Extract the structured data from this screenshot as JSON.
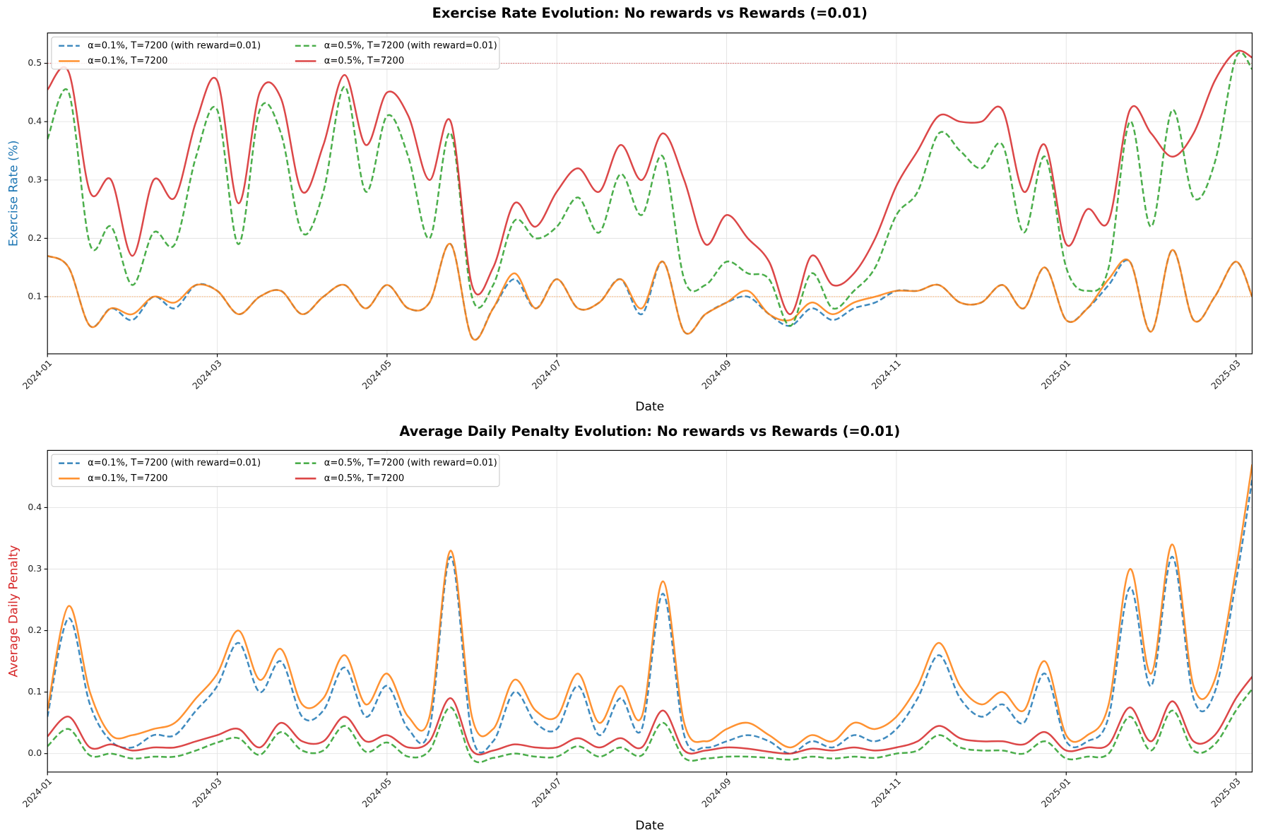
{
  "chart_data": [
    {
      "type": "line",
      "title": "Exercise Rate Evolution: No rewards vs Rewards (=0.01)",
      "xlabel": "Date",
      "ylabel": "Exercise Rate (%)",
      "axis_color": "#1f77b4",
      "x": [
        0,
        0.25,
        0.5,
        0.75,
        1,
        1.25,
        1.5,
        1.75,
        2,
        2.25,
        2.5,
        2.75,
        3,
        3.25,
        3.5,
        3.75,
        4,
        4.25,
        4.5,
        4.75,
        5,
        5.25,
        5.5,
        5.75,
        6,
        6.25,
        6.5,
        6.75,
        7,
        7.25,
        7.5,
        7.75,
        8,
        8.25,
        8.5,
        8.75,
        9,
        9.25,
        9.5,
        9.75,
        10,
        10.25,
        10.5,
        10.75,
        11,
        11.25,
        11.5,
        11.75,
        12,
        12.25,
        12.5,
        12.75,
        13,
        13.25,
        13.5,
        13.75,
        14,
        14.19
      ],
      "xlim": [
        0,
        14.19
      ],
      "xticks": [
        {
          "value": 0,
          "label": "2024-01"
        },
        {
          "value": 2,
          "label": "2024-03"
        },
        {
          "value": 4,
          "label": "2024-05"
        },
        {
          "value": 6,
          "label": "2024-07"
        },
        {
          "value": 8,
          "label": "2024-09"
        },
        {
          "value": 10,
          "label": "2024-11"
        },
        {
          "value": 12,
          "label": "2025-01"
        },
        {
          "value": 14,
          "label": "2025-03"
        }
      ],
      "ylim": [
        0.002,
        0.552
      ],
      "yticks": [
        0.1,
        0.2,
        0.3,
        0.4,
        0.5
      ],
      "grid": true,
      "legend": "upper-left",
      "hlines": [
        {
          "value": 0.5,
          "color": "#d62728"
        },
        {
          "value": 0.1,
          "color": "#ff7f0e"
        }
      ],
      "series": [
        {
          "name": "α=0.1%, T=7200 (with reward=0.01)",
          "color": "#1f77b4",
          "style": "dashed",
          "values": [
            0.17,
            0.15,
            0.05,
            0.08,
            0.06,
            0.1,
            0.08,
            0.12,
            0.11,
            0.07,
            0.1,
            0.11,
            0.07,
            0.1,
            0.12,
            0.08,
            0.12,
            0.08,
            0.09,
            0.19,
            0.03,
            0.08,
            0.13,
            0.08,
            0.13,
            0.08,
            0.09,
            0.13,
            0.07,
            0.16,
            0.04,
            0.07,
            0.09,
            0.1,
            0.07,
            0.05,
            0.08,
            0.06,
            0.08,
            0.09,
            0.11,
            0.11,
            0.12,
            0.09,
            0.09,
            0.12,
            0.08,
            0.15,
            0.06,
            0.08,
            0.12,
            0.16,
            0.04,
            0.18,
            0.06,
            0.1,
            0.16,
            0.1
          ]
        },
        {
          "name": "α=0.1%, T=7200",
          "color": "#ff7f0e",
          "style": "solid",
          "values": [
            0.17,
            0.15,
            0.05,
            0.08,
            0.07,
            0.1,
            0.09,
            0.12,
            0.11,
            0.07,
            0.1,
            0.11,
            0.07,
            0.1,
            0.12,
            0.08,
            0.12,
            0.08,
            0.09,
            0.19,
            0.03,
            0.08,
            0.14,
            0.08,
            0.13,
            0.08,
            0.09,
            0.13,
            0.08,
            0.16,
            0.04,
            0.07,
            0.09,
            0.11,
            0.07,
            0.06,
            0.09,
            0.07,
            0.09,
            0.1,
            0.11,
            0.11,
            0.12,
            0.09,
            0.09,
            0.12,
            0.08,
            0.15,
            0.06,
            0.08,
            0.13,
            0.16,
            0.04,
            0.18,
            0.06,
            0.1,
            0.16,
            0.1
          ]
        },
        {
          "name": "α=0.5%, T=7200 (with reward=0.01)",
          "color": "#2ca02c",
          "style": "dashed",
          "values": [
            0.37,
            0.45,
            0.19,
            0.22,
            0.12,
            0.21,
            0.19,
            0.34,
            0.42,
            0.19,
            0.42,
            0.38,
            0.21,
            0.28,
            0.46,
            0.28,
            0.41,
            0.34,
            0.2,
            0.38,
            0.1,
            0.12,
            0.23,
            0.2,
            0.22,
            0.27,
            0.21,
            0.31,
            0.24,
            0.34,
            0.13,
            0.12,
            0.16,
            0.14,
            0.13,
            0.05,
            0.14,
            0.08,
            0.11,
            0.15,
            0.24,
            0.28,
            0.38,
            0.35,
            0.32,
            0.36,
            0.21,
            0.34,
            0.15,
            0.11,
            0.15,
            0.4,
            0.22,
            0.42,
            0.27,
            0.33,
            0.51,
            0.49
          ]
        },
        {
          "name": "α=0.5%, T=7200",
          "color": "#d62728",
          "style": "solid",
          "values": [
            0.455,
            0.485,
            0.28,
            0.3,
            0.17,
            0.3,
            0.27,
            0.4,
            0.47,
            0.26,
            0.45,
            0.44,
            0.28,
            0.36,
            0.48,
            0.36,
            0.45,
            0.41,
            0.3,
            0.4,
            0.12,
            0.15,
            0.26,
            0.22,
            0.28,
            0.32,
            0.28,
            0.36,
            0.3,
            0.38,
            0.3,
            0.19,
            0.24,
            0.2,
            0.16,
            0.07,
            0.17,
            0.12,
            0.14,
            0.2,
            0.29,
            0.35,
            0.41,
            0.4,
            0.4,
            0.42,
            0.28,
            0.36,
            0.19,
            0.25,
            0.23,
            0.42,
            0.38,
            0.34,
            0.38,
            0.47,
            0.52,
            0.51
          ]
        }
      ]
    },
    {
      "type": "line",
      "title": "Average Daily Penalty Evolution: No rewards vs Rewards (=0.01)",
      "xlabel": "Date",
      "ylabel": "Average Daily Penalty",
      "axis_color": "#d62728",
      "x": [
        0,
        0.25,
        0.5,
        0.75,
        1,
        1.25,
        1.5,
        1.75,
        2,
        2.25,
        2.5,
        2.75,
        3,
        3.25,
        3.5,
        3.75,
        4,
        4.25,
        4.5,
        4.75,
        5,
        5.25,
        5.5,
        5.75,
        6,
        6.25,
        6.5,
        6.75,
        7,
        7.25,
        7.5,
        7.75,
        8,
        8.25,
        8.5,
        8.75,
        9,
        9.25,
        9.5,
        9.75,
        10,
        10.25,
        10.5,
        10.75,
        11,
        11.25,
        11.5,
        11.75,
        12,
        12.25,
        12.5,
        12.75,
        13,
        13.25,
        13.5,
        13.75,
        14,
        14.19
      ],
      "xlim": [
        0,
        14.19
      ],
      "xticks": [
        {
          "value": 0,
          "label": "2024-01"
        },
        {
          "value": 2,
          "label": "2024-03"
        },
        {
          "value": 4,
          "label": "2024-05"
        },
        {
          "value": 6,
          "label": "2024-07"
        },
        {
          "value": 8,
          "label": "2024-09"
        },
        {
          "value": 10,
          "label": "2024-11"
        },
        {
          "value": 12,
          "label": "2025-01"
        },
        {
          "value": 14,
          "label": "2025-03"
        }
      ],
      "ylim": [
        -0.03,
        0.493
      ],
      "yticks": [
        {
          "value": 0,
          "label": "0.0"
        },
        0.1,
        0.2,
        0.3,
        0.4
      ],
      "grid": true,
      "legend": "upper-left",
      "series": [
        {
          "name": "α=0.1%, T=7200 (with reward=0.01)",
          "color": "#1f77b4",
          "style": "dashed",
          "values": [
            0.06,
            0.22,
            0.08,
            0.02,
            0.01,
            0.03,
            0.03,
            0.07,
            0.11,
            0.18,
            0.1,
            0.15,
            0.06,
            0.07,
            0.14,
            0.06,
            0.11,
            0.04,
            0.04,
            0.32,
            0.03,
            0.02,
            0.1,
            0.05,
            0.04,
            0.11,
            0.03,
            0.09,
            0.04,
            0.26,
            0.03,
            0.01,
            0.02,
            0.03,
            0.02,
            0,
            0.02,
            0.01,
            0.03,
            0.02,
            0.04,
            0.09,
            0.16,
            0.09,
            0.06,
            0.08,
            0.05,
            0.13,
            0.02,
            0.02,
            0.06,
            0.27,
            0.11,
            0.32,
            0.09,
            0.1,
            0.28,
            0.445
          ]
        },
        {
          "name": "α=0.1%, T=7200",
          "color": "#ff7f0e",
          "style": "solid",
          "values": [
            0.07,
            0.24,
            0.1,
            0.03,
            0.03,
            0.04,
            0.05,
            0.09,
            0.13,
            0.2,
            0.12,
            0.17,
            0.08,
            0.09,
            0.16,
            0.08,
            0.13,
            0.06,
            0.06,
            0.33,
            0.06,
            0.04,
            0.12,
            0.07,
            0.06,
            0.13,
            0.05,
            0.11,
            0.06,
            0.28,
            0.05,
            0.02,
            0.04,
            0.05,
            0.03,
            0.01,
            0.03,
            0.02,
            0.05,
            0.04,
            0.06,
            0.11,
            0.18,
            0.11,
            0.08,
            0.1,
            0.07,
            0.15,
            0.03,
            0.03,
            0.08,
            0.3,
            0.13,
            0.34,
            0.11,
            0.12,
            0.3,
            0.47
          ]
        },
        {
          "name": "α=0.5%, T=7200 (with reward=0.01)",
          "color": "#2ca02c",
          "style": "dashed",
          "values": [
            0.012,
            0.04,
            -0.003,
            0,
            -0.008,
            -0.005,
            -0.005,
            0.005,
            0.018,
            0.025,
            -0.002,
            0.035,
            0.005,
            0.005,
            0.045,
            0.003,
            0.018,
            -0.005,
            0.005,
            0.075,
            -0.008,
            -0.007,
            0,
            -0.005,
            -0.005,
            0.012,
            -0.005,
            0.01,
            -0.003,
            0.05,
            -0.007,
            -0.008,
            -0.005,
            -0.005,
            -0.007,
            -0.01,
            -0.005,
            -0.008,
            -0.005,
            -0.007,
            0,
            0.005,
            0.03,
            0.01,
            0.005,
            0.005,
            0,
            0.02,
            -0.008,
            -0.005,
            0,
            0.06,
            0.005,
            0.07,
            0.005,
            0.015,
            0.07,
            0.105
          ]
        },
        {
          "name": "α=0.5%, T=7200",
          "color": "#d62728",
          "style": "solid",
          "values": [
            0.028,
            0.06,
            0.01,
            0.015,
            0.005,
            0.01,
            0.01,
            0.02,
            0.03,
            0.04,
            0.01,
            0.05,
            0.02,
            0.02,
            0.06,
            0.02,
            0.03,
            0.01,
            0.02,
            0.09,
            0.005,
            0.005,
            0.015,
            0.01,
            0.01,
            0.025,
            0.01,
            0.025,
            0.01,
            0.07,
            0.005,
            0.005,
            0.01,
            0.008,
            0.003,
            0,
            0.008,
            0.005,
            0.01,
            0.005,
            0.01,
            0.02,
            0.045,
            0.025,
            0.02,
            0.02,
            0.015,
            0.035,
            0.005,
            0.01,
            0.015,
            0.075,
            0.02,
            0.085,
            0.02,
            0.03,
            0.09,
            0.125
          ]
        }
      ]
    }
  ]
}
